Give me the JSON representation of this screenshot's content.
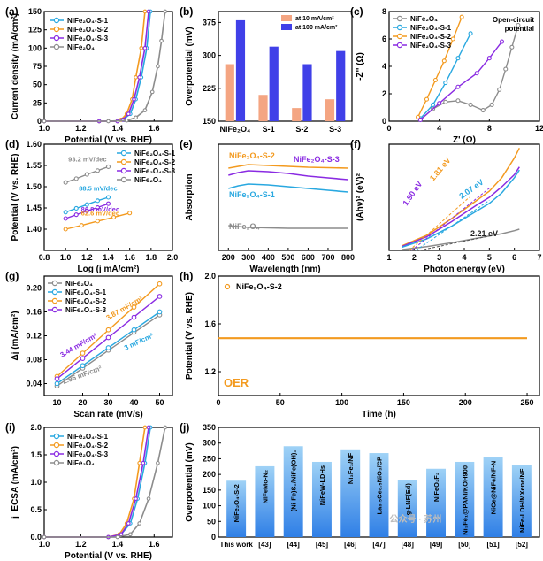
{
  "chart_data": [
    {
      "panel": "a",
      "type": "line",
      "title": "",
      "xlabel": "Potential (V vs. RHE)",
      "ylabel": "Current density (mA/cm²)",
      "xlim": [
        1.0,
        1.7
      ],
      "ylim": [
        0,
        150
      ],
      "xticks": [
        "1.0",
        "1.2",
        "1.4",
        "1.6"
      ],
      "yticks": [
        "0",
        "25",
        "50",
        "75",
        "100",
        "125",
        "150"
      ],
      "legend": [
        "NiFe₂O₄-S-1",
        "NiFe₂O₄-S-2",
        "NiFe₂O₄-S-3",
        "NiFe₂O₄"
      ],
      "series": [
        {
          "name": "NiFe₂O₄-S-1",
          "color": "#29a8e0",
          "x": [
            1.0,
            1.3,
            1.4,
            1.43,
            1.47,
            1.5,
            1.53,
            1.56,
            1.58
          ],
          "y": [
            0,
            0,
            0,
            2,
            10,
            30,
            60,
            100,
            150
          ]
        },
        {
          "name": "NiFe₂O₄-S-2",
          "color": "#f39a1f",
          "x": [
            1.0,
            1.3,
            1.4,
            1.42,
            1.45,
            1.48,
            1.5,
            1.53,
            1.55
          ],
          "y": [
            0,
            0,
            0,
            2,
            10,
            30,
            60,
            100,
            150
          ]
        },
        {
          "name": "NiFe₂O₄-S-3",
          "color": "#8a2be2",
          "x": [
            1.0,
            1.3,
            1.4,
            1.43,
            1.46,
            1.49,
            1.52,
            1.55,
            1.57
          ],
          "y": [
            0,
            0,
            0,
            2,
            10,
            30,
            60,
            100,
            150
          ]
        },
        {
          "name": "NiFe₂O₄",
          "color": "#8c8c8c",
          "x": [
            1.0,
            1.35,
            1.45,
            1.5,
            1.55,
            1.59,
            1.62,
            1.64,
            1.66
          ],
          "y": [
            0,
            0,
            1,
            5,
            15,
            40,
            75,
            110,
            150
          ]
        }
      ]
    },
    {
      "panel": "b",
      "type": "bar",
      "xlabel": "",
      "ylabel": "Overpotential (mV)",
      "ylim": [
        150,
        400
      ],
      "yticks": [
        "150",
        "225",
        "300",
        "375"
      ],
      "categories": [
        "NiFe₂O₄",
        "S-1",
        "S-2",
        "S-3"
      ],
      "legend": [
        "at 10 mA/cm²",
        "at 100 mA/cm²"
      ],
      "series": [
        {
          "name": "at 10 mA/cm²",
          "color": "#f4a582",
          "values": [
            280,
            210,
            180,
            200
          ]
        },
        {
          "name": "at 100 mA/cm²",
          "color": "#4040e8",
          "values": [
            380,
            320,
            280,
            310
          ]
        }
      ]
    },
    {
      "panel": "c",
      "type": "line",
      "xlabel": "Z' (Ω)",
      "ylabel": "-Z'' (Ω)",
      "xlim": [
        0,
        12
      ],
      "ylim": [
        0,
        8
      ],
      "xticks": [
        "0",
        "4",
        "8",
        "12"
      ],
      "yticks": [
        "0",
        "2",
        "4",
        "6",
        "8"
      ],
      "annotation": "Open-circuit potential",
      "legend": [
        "NiFe₂O₄",
        "NiFe₂O₄-S-1",
        "NiFe₂O₄-S-2",
        "NiFe₂O₄-S-3"
      ],
      "series": [
        {
          "name": "NiFe₂O₄",
          "color": "#8c8c8c",
          "x": [
            2.5,
            3.5,
            4.5,
            5.5,
            6.5,
            7.5,
            8.2,
            8.8,
            9.3,
            9.8,
            10.3
          ],
          "y": [
            0.1,
            0.9,
            1.4,
            1.5,
            1.2,
            0.8,
            1.2,
            2.3,
            3.8,
            5.4,
            7.0
          ]
        },
        {
          "name": "NiFe₂O₄-S-1",
          "color": "#29a8e0",
          "x": [
            2.5,
            3.5,
            4.5,
            5.5,
            6.5
          ],
          "y": [
            0.2,
            1.2,
            2.8,
            4.6,
            6.4
          ]
        },
        {
          "name": "NiFe₂O₄-S-2",
          "color": "#f39a1f",
          "x": [
            2.3,
            3.0,
            3.7,
            4.4,
            5.1,
            5.8
          ],
          "y": [
            0.3,
            1.6,
            3.0,
            4.4,
            6.0,
            7.6
          ]
        },
        {
          "name": "NiFe₂O₄-S-3",
          "color": "#8a2be2",
          "x": [
            2.5,
            4.0,
            5.5,
            7.0,
            8.0,
            9.0
          ],
          "y": [
            0.1,
            1.3,
            2.5,
            3.5,
            4.6,
            5.8
          ]
        }
      ]
    },
    {
      "panel": "d",
      "type": "line",
      "xlabel": "Log (j mA/cm²)",
      "ylabel": "Potential (V vs. RHE)",
      "xlim": [
        0.8,
        2.0
      ],
      "ylim": [
        1.35,
        1.6
      ],
      "xticks": [
        "0.8",
        "1.0",
        "1.2",
        "1.4",
        "1.6",
        "1.8",
        "2.0"
      ],
      "yticks": [
        "1.40",
        "1.45",
        "1.50",
        "1.55",
        "1.60"
      ],
      "legend": [
        "NiFe₂O₄-S-1",
        "NiFe₂O₄-S-2",
        "NiFe₂O₄-S-3",
        "NiFe₂O₄"
      ],
      "annotations": [
        "93.2 mV/dec",
        "88.5 mV/dec",
        "86.8 mV/dec",
        "62.6 mV/dec"
      ],
      "series": [
        {
          "name": "NiFe₂O₄-S-1",
          "color": "#29a8e0",
          "x": [
            1.0,
            1.1,
            1.2,
            1.3,
            1.4
          ],
          "y": [
            1.44,
            1.449,
            1.458,
            1.467,
            1.475
          ]
        },
        {
          "name": "NiFe₂O₄-S-2",
          "color": "#f39a1f",
          "x": [
            1.0,
            1.15,
            1.3,
            1.45,
            1.6
          ],
          "y": [
            1.4,
            1.409,
            1.419,
            1.428,
            1.438
          ]
        },
        {
          "name": "NiFe₂O₄-S-3",
          "color": "#8a2be2",
          "x": [
            1.0,
            1.1,
            1.2,
            1.3,
            1.4
          ],
          "y": [
            1.425,
            1.434,
            1.443,
            1.451,
            1.46
          ]
        },
        {
          "name": "NiFe₂O₄",
          "color": "#8c8c8c",
          "x": [
            1.0,
            1.1,
            1.2,
            1.3,
            1.4
          ],
          "y": [
            1.51,
            1.519,
            1.529,
            1.538,
            1.547
          ]
        }
      ]
    },
    {
      "panel": "e",
      "type": "line",
      "xlabel": "Wavelength (nm)",
      "ylabel": "Absorption",
      "xlim": [
        150,
        820
      ],
      "xticks": [
        "200",
        "300",
        "400",
        "500",
        "600",
        "700",
        "800"
      ],
      "labels": [
        "NiFe₂O₄-S-2",
        "NiFe₂O₄-S-3",
        "NiFe₂O₄-S-1",
        "NiFe₂O₄"
      ],
      "series": [
        {
          "name": "NiFe₂O₄-S-2",
          "color": "#f39a1f",
          "x": [
            200,
            250,
            300,
            400,
            500,
            600,
            700,
            800
          ],
          "y": [
            0.93,
            0.95,
            0.97,
            0.96,
            0.95,
            0.94,
            0.935,
            0.93
          ]
        },
        {
          "name": "NiFe₂O₄-S-3",
          "color": "#8a2be2",
          "x": [
            200,
            250,
            300,
            400,
            500,
            600,
            700,
            800
          ],
          "y": [
            0.85,
            0.88,
            0.9,
            0.89,
            0.87,
            0.84,
            0.82,
            0.8
          ]
        },
        {
          "name": "NiFe₂O₄-S-1",
          "color": "#29a8e0",
          "x": [
            200,
            250,
            300,
            400,
            500,
            600,
            700,
            800
          ],
          "y": [
            0.7,
            0.73,
            0.75,
            0.74,
            0.72,
            0.7,
            0.68,
            0.66
          ]
        },
        {
          "name": "NiFe₂O₄",
          "color": "#8c8c8c",
          "x": [
            200,
            250,
            300,
            400,
            500,
            600,
            700,
            800
          ],
          "y": [
            0.28,
            0.27,
            0.26,
            0.255,
            0.25,
            0.25,
            0.25,
            0.25
          ]
        }
      ]
    },
    {
      "panel": "f",
      "type": "line",
      "xlabel": "Photon energy (eV)",
      "ylabel": "(Ahν)² (eV)²",
      "xlim": [
        1,
        7
      ],
      "ylim": [
        0,
        14
      ],
      "xticks": [
        "1",
        "2",
        "3",
        "4",
        "5",
        "6",
        "7"
      ],
      "annotations": [
        "1.90 eV",
        "1.81 eV",
        "2.07 eV",
        "2.21 eV"
      ],
      "series": [
        {
          "name": "NiFe₂O₄-S-2",
          "color": "#f39a1f",
          "x": [
            1.5,
            2.5,
            3.5,
            4.5,
            5.0,
            5.5,
            6.0,
            6.2
          ],
          "y": [
            0.6,
            2.0,
            4.2,
            6.6,
            7.8,
            9.6,
            12.2,
            13.5
          ]
        },
        {
          "name": "NiFe₂O₄-S-3",
          "color": "#8a2be2",
          "x": [
            1.5,
            2.5,
            3.5,
            4.5,
            5.0,
            5.5,
            6.0,
            6.2
          ],
          "y": [
            0.5,
            1.8,
            3.8,
            6.0,
            7.0,
            8.4,
            10.0,
            11.0
          ]
        },
        {
          "name": "NiFe₂O₄-S-1",
          "color": "#29a8e0",
          "x": [
            1.5,
            2.5,
            3.5,
            4.5,
            5.0,
            5.5,
            6.0,
            6.2
          ],
          "y": [
            0.4,
            1.5,
            3.2,
            5.2,
            6.2,
            7.6,
            9.6,
            10.6
          ]
        },
        {
          "name": "NiFe₂O₄",
          "color": "#8c8c8c",
          "x": [
            1.5,
            2.5,
            3.5,
            4.5,
            5.0,
            5.5,
            6.0,
            6.2
          ],
          "y": [
            0.1,
            0.5,
            1.0,
            1.6,
            1.9,
            2.2,
            2.6,
            2.8
          ]
        }
      ]
    },
    {
      "panel": "g",
      "type": "scatter",
      "xlabel": "Scan rate (mV/s)",
      "ylabel": "Δj (mA/cm²)",
      "xlim": [
        5,
        55
      ],
      "ylim": [
        0.02,
        0.22
      ],
      "xticks": [
        "10",
        "20",
        "30",
        "40",
        "50"
      ],
      "yticks": [
        "0.04",
        "0.08",
        "0.12",
        "0.16",
        "0.20"
      ],
      "legend": [
        "NiFe₂O₄",
        "NiFe₂O₄-S-1",
        "NiFe₂O₄-S-2",
        "NiFe₂O₄-S-3"
      ],
      "annotations": [
        "3.87 mF/cm²",
        "3.44 mF/cm²",
        "3 mF/cm²",
        "2.96 mF/cm²"
      ],
      "series": [
        {
          "name": "NiFe₂O₄",
          "color": "#8c8c8c",
          "x": [
            10,
            20,
            30,
            40,
            50
          ],
          "y": [
            0.036,
            0.066,
            0.096,
            0.126,
            0.155
          ]
        },
        {
          "name": "NiFe₂O₄-S-1",
          "color": "#29a8e0",
          "x": [
            10,
            20,
            30,
            40,
            50
          ],
          "y": [
            0.04,
            0.07,
            0.1,
            0.13,
            0.16
          ]
        },
        {
          "name": "NiFe₂O₄-S-2",
          "color": "#f39a1f",
          "x": [
            10,
            20,
            30,
            40,
            50
          ],
          "y": [
            0.052,
            0.091,
            0.13,
            0.168,
            0.207
          ]
        },
        {
          "name": "NiFe₂O₄-S-3",
          "color": "#8a2be2",
          "x": [
            10,
            20,
            30,
            40,
            50
          ],
          "y": [
            0.048,
            0.082,
            0.117,
            0.151,
            0.186
          ]
        }
      ]
    },
    {
      "panel": "h",
      "type": "line",
      "xlabel": "Time (h)",
      "ylabel": "Potential (V vs. RHE)",
      "xlim": [
        0,
        260
      ],
      "ylim": [
        1.0,
        2.0
      ],
      "xticks": [
        "0",
        "50",
        "100",
        "150",
        "200",
        "250"
      ],
      "yticks": [
        "1.2",
        "1.6",
        "2.0"
      ],
      "legend": [
        "NiFe₂O₄-S-2"
      ],
      "annotation": "OER",
      "series": [
        {
          "name": "NiFe₂O₄-S-2",
          "color": "#f39a1f",
          "x": [
            0,
            50,
            100,
            150,
            200,
            250
          ],
          "y": [
            1.48,
            1.48,
            1.48,
            1.48,
            1.48,
            1.48
          ]
        }
      ]
    },
    {
      "panel": "i",
      "type": "line",
      "xlabel": "Potential (V vs. RHE)",
      "ylabel": "j_ECSA (mA/cm²)",
      "xlim": [
        1.0,
        1.7
      ],
      "ylim": [
        0,
        2.0
      ],
      "xticks": [
        "1.0",
        "1.2",
        "1.4",
        "1.6"
      ],
      "yticks": [
        "0.0",
        "0.5",
        "1.0",
        "1.5",
        "2.0"
      ],
      "legend": [
        "NiFe₂O₄-S-1",
        "NiFe₂O₄-S-2",
        "NiFe₂O₄-S-3",
        "NiFe₂O₄"
      ],
      "series": [
        {
          "name": "NiFe₂O₄-S-1",
          "color": "#29a8e0",
          "x": [
            1.0,
            1.35,
            1.42,
            1.47,
            1.51,
            1.55,
            1.58
          ],
          "y": [
            0,
            0,
            0.05,
            0.25,
            0.7,
            1.35,
            2.0
          ]
        },
        {
          "name": "NiFe₂O₄-S-2",
          "color": "#f39a1f",
          "x": [
            1.0,
            1.35,
            1.41,
            1.45,
            1.49,
            1.52,
            1.55
          ],
          "y": [
            0,
            0,
            0.05,
            0.25,
            0.7,
            1.35,
            2.0
          ]
        },
        {
          "name": "NiFe₂O₄-S-3",
          "color": "#8a2be2",
          "x": [
            1.0,
            1.35,
            1.42,
            1.46,
            1.5,
            1.54,
            1.57
          ],
          "y": [
            0,
            0,
            0.05,
            0.25,
            0.7,
            1.35,
            2.0
          ]
        },
        {
          "name": "NiFe₂O₄",
          "color": "#8c8c8c",
          "x": [
            1.0,
            1.4,
            1.47,
            1.52,
            1.57,
            1.62,
            1.66
          ],
          "y": [
            0,
            0,
            0.05,
            0.25,
            0.7,
            1.35,
            2.0
          ]
        }
      ]
    },
    {
      "panel": "j",
      "type": "bar",
      "xlabel": "",
      "ylabel": "Overpotential (mV)",
      "ylim": [
        0,
        350
      ],
      "yticks": [
        "0",
        "50",
        "100",
        "150",
        "200",
        "250",
        "300",
        "350"
      ],
      "categories": [
        "NiFe₂O₄-S-2",
        "NiFeMo-N₂",
        "(Ni-Fe)S₂/NiFe(OH)₂",
        "NiFeW-LDHs",
        "Ni₃Fe₃/NF",
        "La₀.₅Ce₀.₅NiO₃/CP",
        "g-LNF(Ed)",
        "NiFeO₂F₂",
        "Ni₃Fe₁@PANI/KOH900",
        "NiCe@NiFe/NF-N",
        "NiFe-LDH/MXene/NF"
      ],
      "refs": [
        "This work",
        "[43]",
        "[44]",
        "[45]",
        "[46]",
        "[47]",
        "[48]",
        "[49]",
        "[50]",
        "[51]",
        "[52]"
      ],
      "values": [
        180,
        226,
        290,
        240,
        280,
        268,
        183,
        218,
        240,
        255,
        230
      ],
      "highlight_color": "#2f7fe6",
      "gradient_top": "#9fd2f6"
    }
  ],
  "panel_labels": [
    "(a)",
    "(b)",
    "(c)",
    "(d)",
    "(e)",
    "(f)",
    "(g)",
    "(h)",
    "(i)",
    "(j)"
  ],
  "watermark": "公众号 · 苏州"
}
